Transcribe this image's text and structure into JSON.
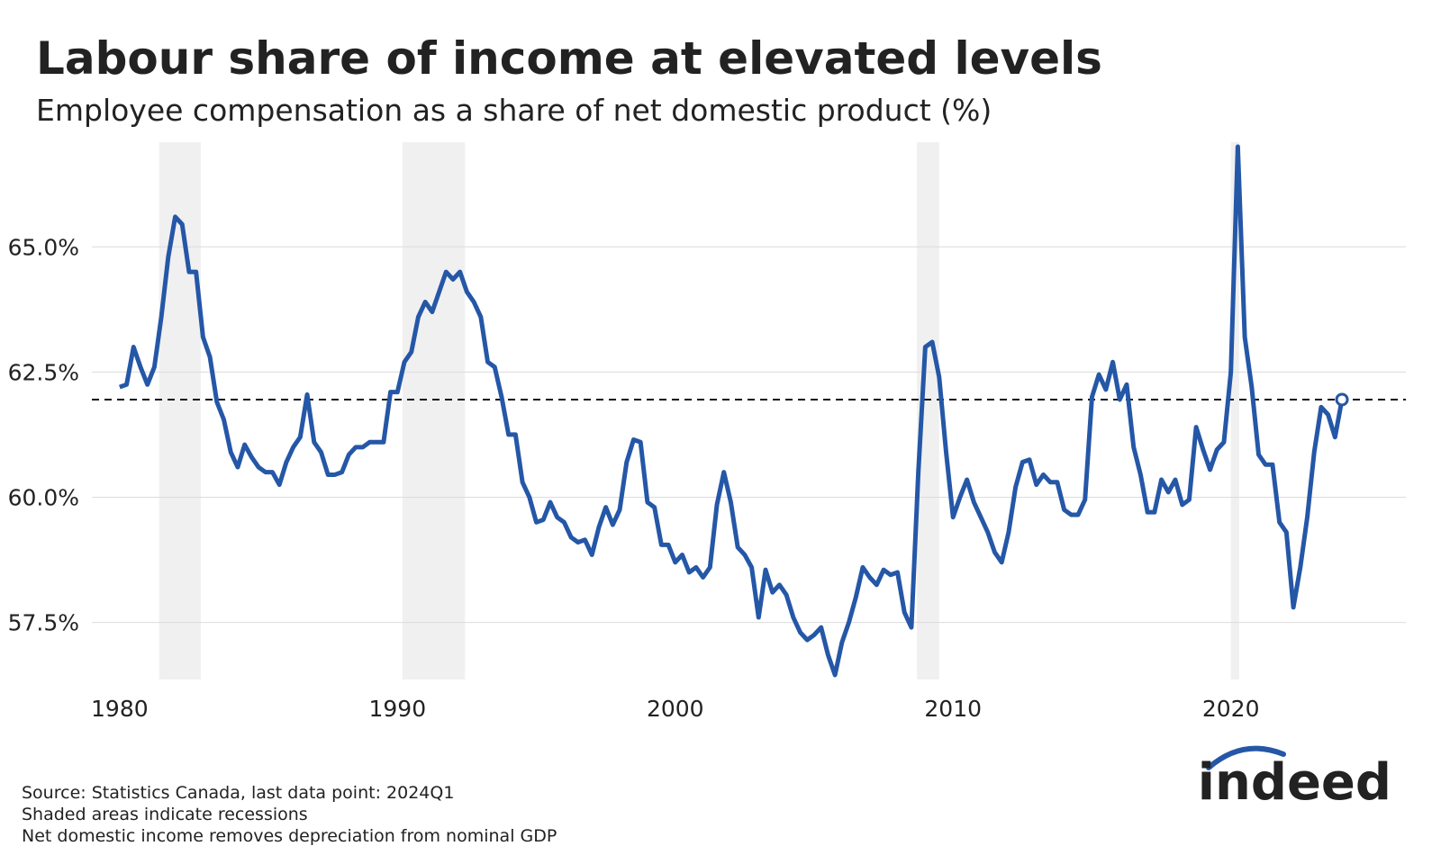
{
  "chart_data": {
    "type": "line",
    "title": "Labour share of income at elevated levels",
    "subtitle": "Employee compensation as a share of net domestic product (%)",
    "notes": [
      "Source: Statistics Canada, last data point: 2024Q1",
      "Shaded areas indicate recessions",
      "Net domestic income removes depreciation from nominal GDP"
    ],
    "logo": "indeed",
    "color": "#2557a7",
    "grid": true,
    "xlim": [
      1979.0,
      2026.3
    ],
    "ylim": [
      56.36,
      67.09
    ],
    "xticks": [
      1980,
      1990,
      2000,
      2010,
      2020
    ],
    "yticks": [
      {
        "value": 57.5,
        "label": "57.5%"
      },
      {
        "value": 60,
        "label": "60.0%"
      },
      {
        "value": 62.5,
        "label": "62.5%"
      },
      {
        "value": 65,
        "label": "65.0%"
      }
    ],
    "reference_line": 61.95,
    "recessions": [
      [
        1981.42,
        1982.92
      ],
      [
        1990.18,
        1992.43
      ],
      [
        2008.7,
        2009.5
      ],
      [
        2020.0,
        2020.3
      ]
    ],
    "x": [
      1980,
      1980.25,
      1980.5,
      1980.75,
      1981,
      1981.25,
      1981.5,
      1981.75,
      1982,
      1982.25,
      1982.5,
      1982.75,
      1983,
      1983.25,
      1983.5,
      1983.75,
      1984,
      1984.25,
      1984.5,
      1984.75,
      1985,
      1985.25,
      1985.5,
      1985.75,
      1986,
      1986.25,
      1986.5,
      1986.75,
      1987,
      1987.25,
      1987.5,
      1987.75,
      1988,
      1988.25,
      1988.5,
      1988.75,
      1989,
      1989.25,
      1989.5,
      1989.75,
      1990,
      1990.25,
      1990.5,
      1990.75,
      1991,
      1991.25,
      1991.5,
      1991.75,
      1992,
      1992.25,
      1992.5,
      1992.75,
      1993,
      1993.25,
      1993.5,
      1993.75,
      1994,
      1994.25,
      1994.5,
      1994.75,
      1995,
      1995.25,
      1995.5,
      1995.75,
      1996,
      1996.25,
      1996.5,
      1996.75,
      1997,
      1997.25,
      1997.5,
      1997.75,
      1998,
      1998.25,
      1998.5,
      1998.75,
      1999,
      1999.25,
      1999.5,
      1999.75,
      2000,
      2000.25,
      2000.5,
      2000.75,
      2001,
      2001.25,
      2001.5,
      2001.75,
      2002,
      2002.25,
      2002.5,
      2002.75,
      2003,
      2003.25,
      2003.5,
      2003.75,
      2004,
      2004.25,
      2004.5,
      2004.75,
      2005,
      2005.25,
      2005.5,
      2005.75,
      2006,
      2006.25,
      2006.5,
      2006.75,
      2007,
      2007.25,
      2007.5,
      2007.75,
      2008,
      2008.25,
      2008.5,
      2008.75,
      2009,
      2009.25,
      2009.5,
      2009.75,
      2010,
      2010.25,
      2010.5,
      2010.75,
      2011,
      2011.25,
      2011.5,
      2011.75,
      2012,
      2012.25,
      2012.5,
      2012.75,
      2013,
      2013.25,
      2013.5,
      2013.75,
      2014,
      2014.25,
      2014.5,
      2014.75,
      2015,
      2015.25,
      2015.5,
      2015.75,
      2016,
      2016.25,
      2016.5,
      2016.75,
      2017,
      2017.25,
      2017.5,
      2017.75,
      2018,
      2018.25,
      2018.5,
      2018.75,
      2019,
      2019.25,
      2019.5,
      2019.75,
      2020,
      2020.25,
      2020.5,
      2020.75,
      2021,
      2021.25,
      2021.5,
      2021.75,
      2022,
      2022.25,
      2022.5,
      2022.75,
      2023,
      2023.25,
      2023.5,
      2023.75,
      2024
    ],
    "values": [
      62.2,
      62.25,
      63.0,
      62.6,
      62.25,
      62.6,
      63.6,
      64.8,
      65.6,
      65.45,
      64.5,
      64.5,
      63.2,
      62.8,
      61.9,
      61.55,
      60.9,
      60.6,
      61.05,
      60.8,
      60.6,
      60.5,
      60.5,
      60.25,
      60.7,
      61.0,
      61.2,
      62.05,
      61.1,
      60.9,
      60.45,
      60.45,
      60.5,
      60.85,
      61.0,
      61.0,
      61.1,
      61.1,
      61.1,
      62.1,
      62.1,
      62.7,
      62.9,
      63.6,
      63.9,
      63.7,
      64.1,
      64.5,
      64.35,
      64.5,
      64.1,
      63.9,
      63.6,
      62.7,
      62.6,
      62.0,
      61.25,
      61.25,
      60.3,
      60.0,
      59.5,
      59.55,
      59.9,
      59.6,
      59.5,
      59.2,
      59.1,
      59.15,
      58.85,
      59.4,
      59.8,
      59.45,
      59.75,
      60.7,
      61.15,
      61.1,
      59.9,
      59.8,
      59.05,
      59.05,
      58.7,
      58.85,
      58.5,
      58.6,
      58.4,
      58.6,
      59.85,
      60.5,
      59.9,
      59.0,
      58.85,
      58.6,
      57.6,
      58.55,
      58.1,
      58.25,
      58.05,
      57.6,
      57.3,
      57.15,
      57.25,
      57.4,
      56.85,
      56.45,
      57.1,
      57.5,
      58.0,
      58.6,
      58.4,
      58.25,
      58.55,
      58.45,
      58.5,
      57.7,
      57.4,
      60.5,
      63.0,
      63.1,
      62.4,
      60.9,
      59.6,
      60.0,
      60.35,
      59.9,
      59.6,
      59.3,
      58.9,
      58.7,
      59.3,
      60.2,
      60.7,
      60.75,
      60.25,
      60.45,
      60.3,
      60.3,
      59.75,
      59.65,
      59.65,
      59.95,
      62.0,
      62.45,
      62.15,
      62.7,
      61.95,
      62.25,
      61.0,
      60.45,
      59.7,
      59.7,
      60.35,
      60.1,
      60.35,
      59.85,
      59.95,
      61.4,
      60.95,
      60.55,
      60.95,
      61.1,
      62.5,
      67.0,
      63.2,
      62.2,
      60.85,
      60.65,
      60.65,
      59.5,
      59.3,
      57.8,
      58.6,
      59.6,
      60.9,
      61.8,
      61.65,
      61.2,
      61.95
    ]
  }
}
